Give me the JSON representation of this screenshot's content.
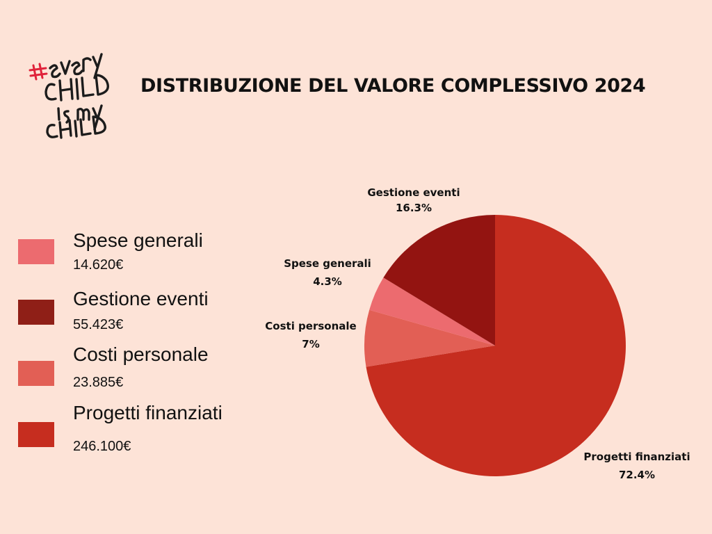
{
  "logo": {
    "alt_text": "#every CHILD is my CHILD",
    "hash_color": "#e0223a",
    "ink_color": "#1c1c1c"
  },
  "title": "DISTRIBUZIONE DEL VALORE COMPLESSIVO 2024",
  "legend": [
    {
      "name": "Spese generali",
      "value": "14.620€",
      "color": "#ec6b6f"
    },
    {
      "name": "Gestione eventi",
      "value": "55.423€",
      "color": "#8f1f17"
    },
    {
      "name": "Costi personale",
      "value": "23.885€",
      "color": "#e25f55"
    },
    {
      "name": "Progetti finanziati",
      "value": "246.100€",
      "color": "#c62d1f"
    }
  ],
  "chart_data": {
    "type": "pie",
    "title": "DISTRIBUZIONE DEL VALORE COMPLESSIVO 2024",
    "slices": [
      {
        "label": "Progetti finanziati",
        "percent_label": "72.4%",
        "value": 72.4,
        "color": "#c62d1f"
      },
      {
        "label": "Costi personale",
        "percent_label": "7%",
        "value": 7.0,
        "color": "#e25f55"
      },
      {
        "label": "Spese generali",
        "percent_label": "4.3%",
        "value": 4.3,
        "color": "#ec6b6f"
      },
      {
        "label": "Gestione eventi",
        "percent_label": "16.3%",
        "value": 16.3,
        "color": "#931411"
      }
    ],
    "start": "12 o'clock",
    "direction": "clockwise",
    "legend_position": "left"
  }
}
